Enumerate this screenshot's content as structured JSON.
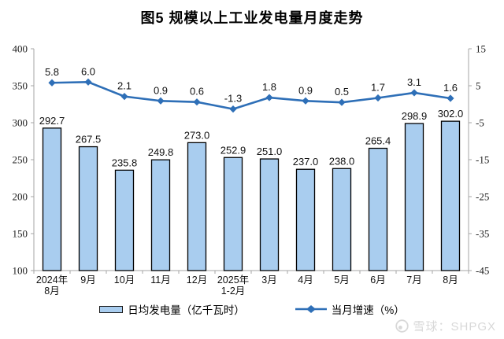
{
  "title": "图5 规模以上工业发电量月度走势",
  "watermark": {
    "text": "雪球：SHPGX"
  },
  "chart_data": {
    "type": "combo-bar-line",
    "title": "图5 规模以上工业发电量月度走势",
    "categories": [
      [
        "2024年",
        "8月"
      ],
      [
        "9月"
      ],
      [
        "10月"
      ],
      [
        "11月"
      ],
      [
        "12月"
      ],
      [
        "2025年",
        "1-2月"
      ],
      [
        "3月"
      ],
      [
        "4月"
      ],
      [
        "5月"
      ],
      [
        "6月"
      ],
      [
        "7月"
      ],
      [
        "8月"
      ]
    ],
    "series": [
      {
        "name": "日均发电量（亿千瓦时）",
        "type": "bar",
        "axis": "left",
        "color": "#A9CDEF",
        "border_color": "#000000",
        "values": [
          292.7,
          267.5,
          235.8,
          249.8,
          273.0,
          252.9,
          251.0,
          237.0,
          238.0,
          265.4,
          298.9,
          302.0
        ]
      },
      {
        "name": "当月增速（%）",
        "type": "line",
        "axis": "right",
        "color": "#2E6FB7",
        "marker": "diamond",
        "values": [
          5.8,
          6.0,
          2.1,
          0.9,
          0.6,
          -1.3,
          1.8,
          0.9,
          0.5,
          1.7,
          3.1,
          1.6
        ]
      }
    ],
    "left_axis": {
      "min": 100,
      "max": 400,
      "ticks": [
        400,
        350,
        300,
        250,
        200,
        150,
        100
      ]
    },
    "right_axis": {
      "min": -45,
      "max": 15,
      "ticks": [
        15,
        5,
        -5,
        -15,
        -25,
        -35,
        -45
      ]
    },
    "grid": false,
    "legend_position": "bottom",
    "axis_color": "#a6a6a6"
  }
}
